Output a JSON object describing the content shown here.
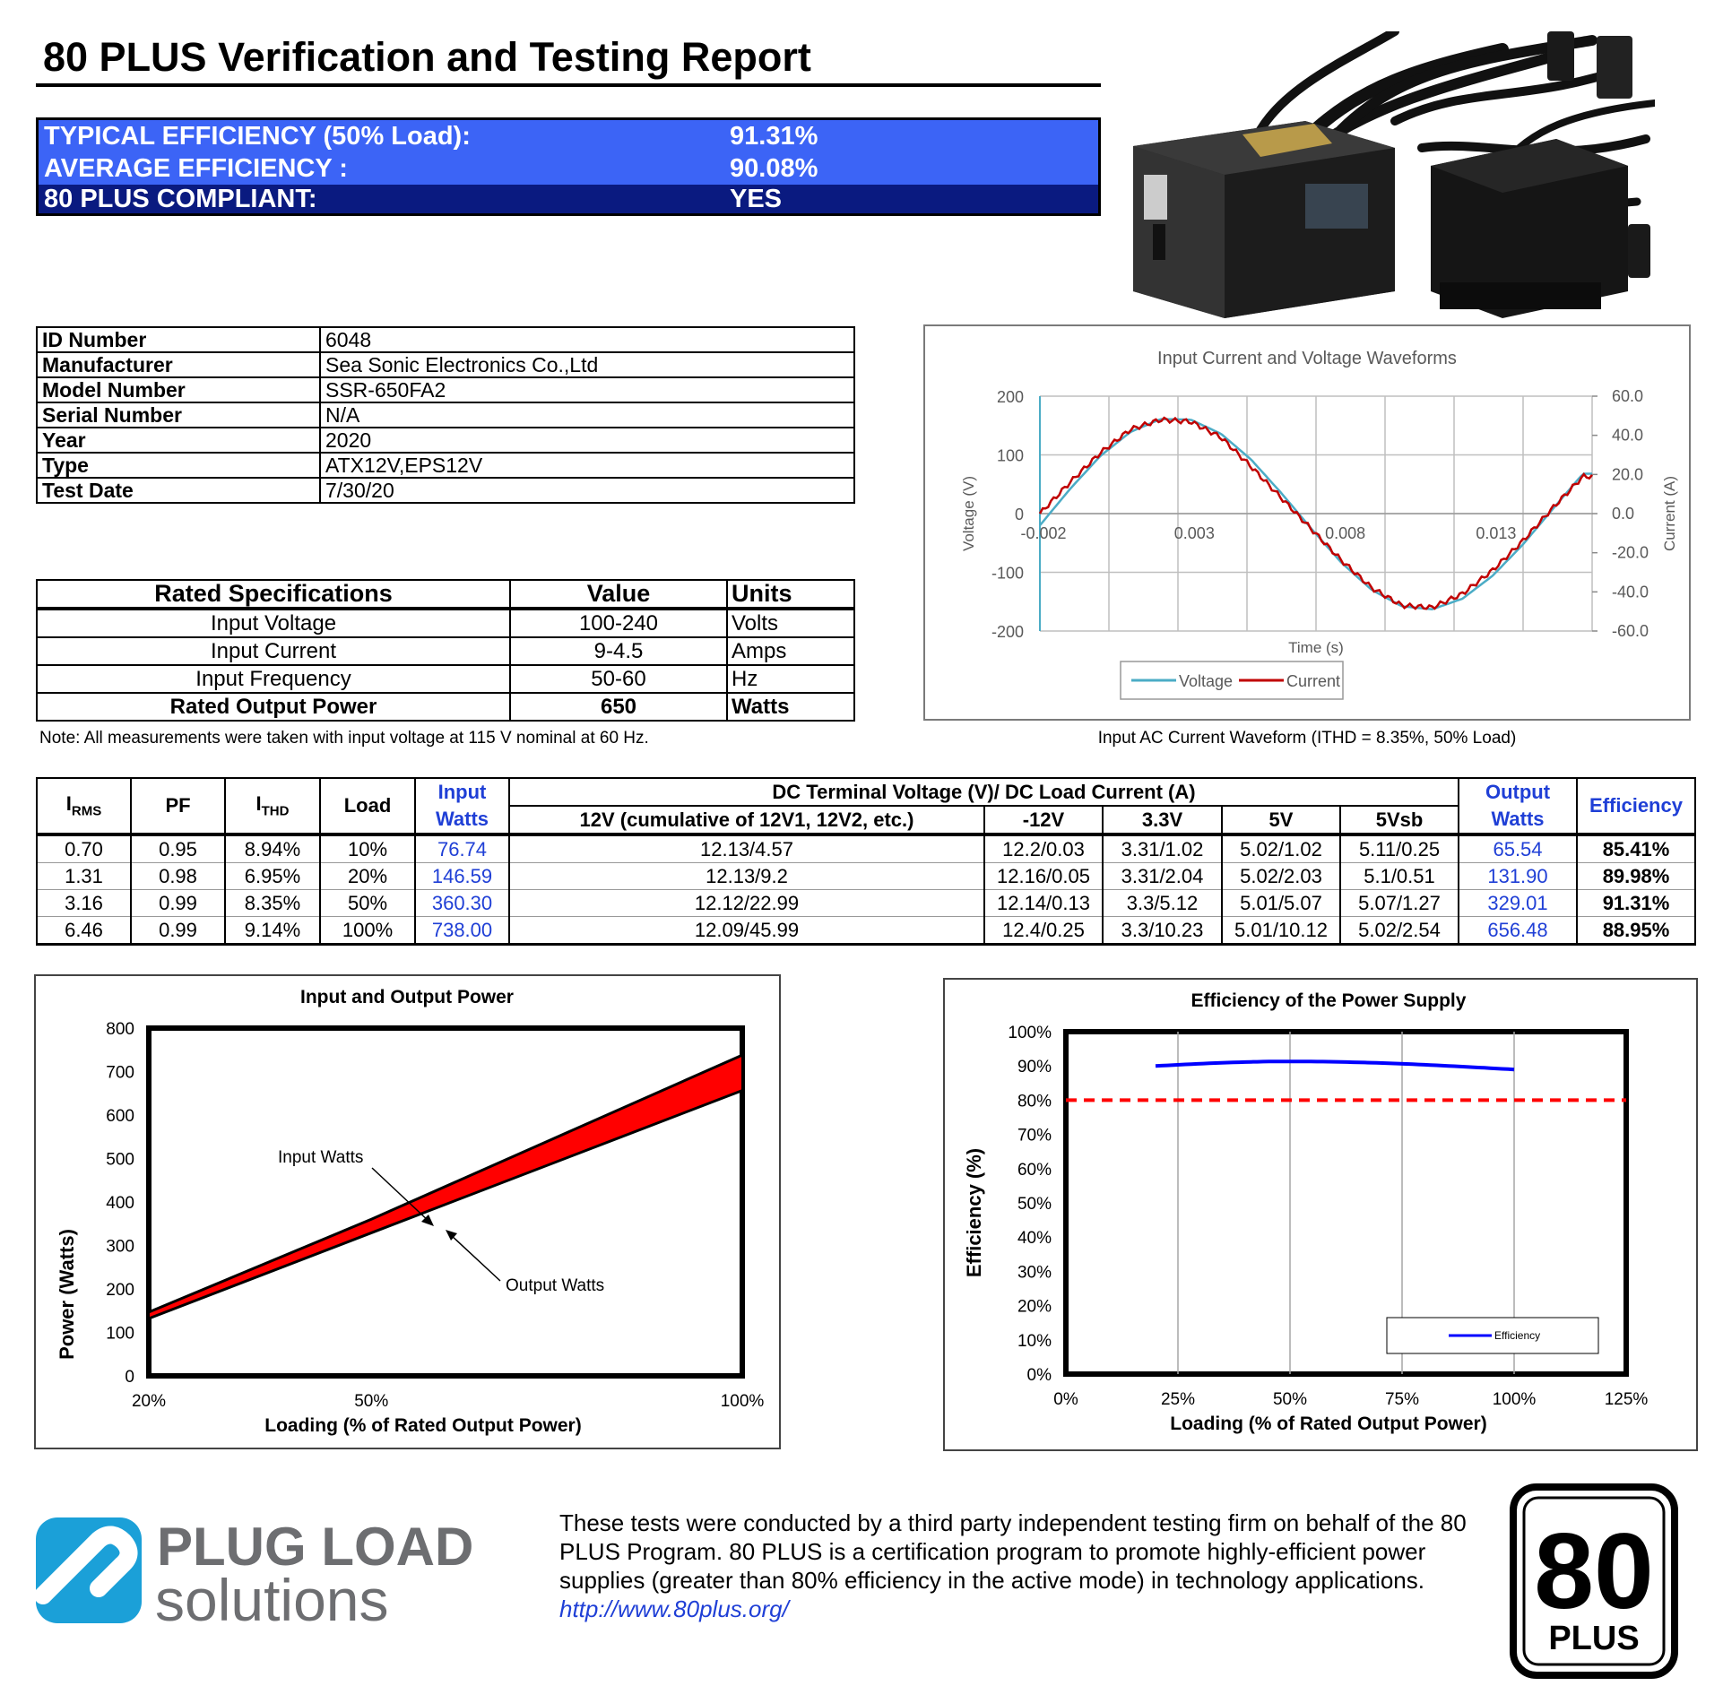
{
  "report_title": "80 PLUS Verification and Testing Report",
  "efficiency_summary": [
    {
      "label": "TYPICAL EFFICIENCY (50% Load):",
      "value": "91.31%",
      "color": "#3c64f6"
    },
    {
      "label": "AVERAGE EFFICIENCY :",
      "value": "90.08%",
      "color": "#3c64f6"
    },
    {
      "label": "80 PLUS COMPLIANT:",
      "value": "YES",
      "color": "#0a1a80"
    }
  ],
  "product_info": [
    {
      "label": "ID Number",
      "value": "6048"
    },
    {
      "label": "Manufacturer",
      "value": "Sea Sonic Electronics Co.,Ltd"
    },
    {
      "label": "Model Number",
      "value": "SSR-650FA2"
    },
    {
      "label": "Serial Number",
      "value": "N/A"
    },
    {
      "label": "Year",
      "value": "2020"
    },
    {
      "label": "Type",
      "value": "ATX12V,EPS12V"
    },
    {
      "label": "Test Date",
      "value": "7/30/20"
    }
  ],
  "rated_specs": {
    "headers": [
      "Rated Specifications",
      "Value",
      "Units"
    ],
    "rows": [
      [
        "Input Voltage",
        "100-240",
        "Volts"
      ],
      [
        "Input Current",
        "9-4.5",
        "Amps"
      ],
      [
        "Input Frequency",
        "50-60",
        "Hz"
      ],
      [
        "Rated Output Power",
        "650",
        "Watts"
      ]
    ],
    "note": "Note: All measurements were taken with input voltage at 115 V nominal at 60 Hz."
  },
  "measurements": {
    "h_irms_main": "I",
    "h_irms_sub": "RMS",
    "h_pf": "PF",
    "h_ithd_main": "I",
    "h_ithd_sub": "THD",
    "h_load": "Load",
    "h_input_1": "Input",
    "h_input_2": "Watts",
    "h_dc_group": "DC Terminal Voltage (V)/ DC Load Current (A)",
    "h_dc_cols": [
      "12V (cumulative of 12V1, 12V2, etc.)",
      "-12V",
      "3.3V",
      "5V",
      "5Vsb"
    ],
    "h_output_1": "Output",
    "h_output_2": "Watts",
    "h_eff": "Efficiency",
    "rows": [
      [
        "0.70",
        "0.95",
        "8.94%",
        "10%",
        "76.74",
        "12.13/4.57",
        "12.2/0.03",
        "3.31/1.02",
        "5.02/1.02",
        "5.11/0.25",
        "65.54",
        "85.41%"
      ],
      [
        "1.31",
        "0.98",
        "6.95%",
        "20%",
        "146.59",
        "12.13/9.2",
        "12.16/0.05",
        "3.31/2.04",
        "5.02/2.03",
        "5.1/0.51",
        "131.90",
        "89.98%"
      ],
      [
        "3.16",
        "0.99",
        "8.35%",
        "50%",
        "360.30",
        "12.12/22.99",
        "12.14/0.13",
        "3.3/5.12",
        "5.01/5.07",
        "5.07/1.27",
        "329.01",
        "91.31%"
      ],
      [
        "6.46",
        "0.99",
        "9.14%",
        "100%",
        "738.00",
        "12.09/45.99",
        "12.4/0.25",
        "3.3/10.23",
        "5.01/10.12",
        "5.02/2.54",
        "656.48",
        "88.95%"
      ]
    ]
  },
  "chart_data": [
    {
      "type": "line",
      "title": "Input Current and Voltage Waveforms",
      "caption": "Input AC Current Waveform (ITHD = 8.35%, 50% Load)",
      "xlabel": "Time (s)",
      "ylabel": "Voltage (V)",
      "y2label": "Current (A)",
      "x_ticks": [
        "-0.002",
        "0.003",
        "0.008",
        "0.013"
      ],
      "y_ticks": [
        "200",
        "100",
        "0",
        "-100",
        "-200"
      ],
      "y2_ticks": [
        "60.0",
        "40.0",
        "20.0",
        "0.0",
        "-20.0",
        "-40.0",
        "-60.0"
      ],
      "xlim": [
        -0.002,
        0.0163
      ],
      "ylim": [
        -200,
        200
      ],
      "y2lim": [
        -60,
        60
      ],
      "series": [
        {
          "name": "Voltage",
          "color": "#4bacc6",
          "axis": "left",
          "amplitude": 163,
          "x": [
            -0.002,
            -0.001,
            0.0,
            0.001,
            0.002,
            0.003,
            0.004,
            0.005,
            0.006,
            0.007,
            0.008,
            0.009,
            0.01,
            0.011,
            0.012,
            0.013,
            0.014,
            0.015,
            0.016
          ],
          "y": [
            -20,
            42,
            98,
            139,
            161,
            160,
            136,
            92,
            35,
            -26,
            -84,
            -130,
            -158,
            -163,
            -145,
            -106,
            -53,
            8,
            68
          ]
        },
        {
          "name": "Current",
          "color": "#c00000",
          "axis": "right",
          "x": [
            -0.002,
            -0.001,
            0.0,
            0.001,
            0.002,
            0.003,
            0.004,
            0.005,
            0.006,
            0.007,
            0.008,
            0.009,
            0.01,
            0.011,
            0.012,
            0.013,
            0.014,
            0.015,
            0.016
          ],
          "y": [
            0,
            16,
            31,
            43,
            48,
            47,
            39,
            24,
            8,
            -8,
            -24,
            -38,
            -47,
            -48,
            -41,
            -29,
            -14,
            3,
            19
          ]
        }
      ],
      "legend": "bottom"
    },
    {
      "type": "area",
      "title": "Input and Output Power",
      "xlabel": "Loading (% of Rated Output Power)",
      "ylabel": "Power (Watts)",
      "categories": [
        "20%",
        "50%",
        "100%"
      ],
      "x": [
        20,
        50,
        100
      ],
      "y_ticks": [
        "0",
        "100",
        "200",
        "300",
        "400",
        "500",
        "600",
        "700",
        "800"
      ],
      "ylim": [
        0,
        800
      ],
      "series": [
        {
          "name": "Input Watts",
          "values": [
            146.59,
            360.3,
            738.0
          ]
        },
        {
          "name": "Output Watts",
          "values": [
            131.9,
            329.01,
            656.48
          ]
        }
      ],
      "fill_color": "#ff0000",
      "annotations": [
        "Input Watts",
        "Output Watts"
      ]
    },
    {
      "type": "line",
      "title": "Efficiency of the Power Supply",
      "xlabel": "Loading (% of Rated Output Power)",
      "ylabel": "Efficiency (%)",
      "x_ticks": [
        "0%",
        "25%",
        "50%",
        "75%",
        "100%",
        "125%"
      ],
      "y_ticks": [
        "0%",
        "10%",
        "20%",
        "30%",
        "40%",
        "50%",
        "60%",
        "70%",
        "80%",
        "90%",
        "100%"
      ],
      "xlim": [
        0,
        125
      ],
      "ylim": [
        0,
        100
      ],
      "series": [
        {
          "name": "Efficiency",
          "color": "#0000ff",
          "x": [
            20,
            50,
            100
          ],
          "y": [
            89.98,
            91.31,
            88.95
          ]
        }
      ],
      "threshold": {
        "value": 80,
        "color": "#ff0000",
        "style": "dashed"
      },
      "legend": "bottom-right"
    }
  ],
  "footer": {
    "logo_line1": "PLUG LOAD",
    "logo_line2": "solutions",
    "text": "These tests were conducted by a third party independent testing firm on behalf of the 80 PLUS Program. 80 PLUS is a certification program to promote highly-efficient power supplies (greater than 80% efficiency in the active mode) in technology applications.",
    "link": "http://www.80plus.org/",
    "badge_number": "80",
    "badge_text": "PLUS"
  }
}
